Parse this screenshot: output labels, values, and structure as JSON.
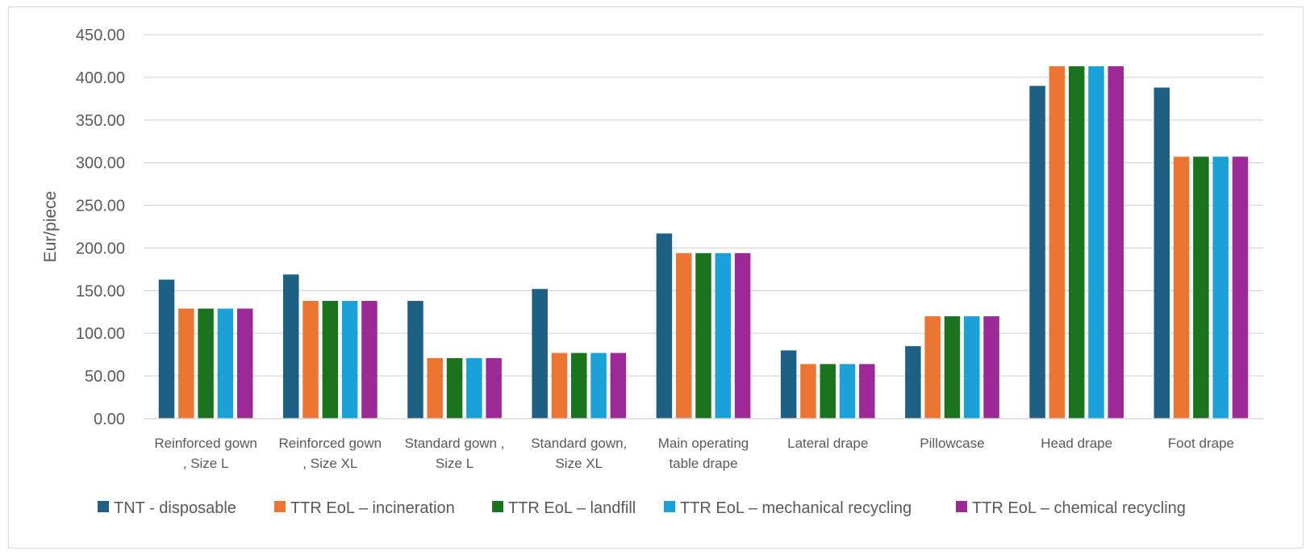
{
  "chart_data": {
    "type": "bar",
    "title": "",
    "xlabel": "",
    "ylabel": "Eur/piece",
    "ylim": [
      0,
      450
    ],
    "yticks": [
      "0.00",
      "50.00",
      "100.00",
      "150.00",
      "200.00",
      "250.00",
      "300.00",
      "350.00",
      "400.00",
      "450.00"
    ],
    "grid": true,
    "legend_position": "bottom",
    "categories": [
      [
        "Reinforced gown",
        ", Size L"
      ],
      [
        "Reinforced gown",
        ", Size XL"
      ],
      [
        "Standard gown ,",
        "Size L"
      ],
      [
        "Standard gown,",
        "Size XL"
      ],
      [
        "Main operating",
        "table drape"
      ],
      [
        "Lateral drape"
      ],
      [
        "Pillowcase"
      ],
      [
        "Head drape"
      ],
      [
        "Foot drape"
      ]
    ],
    "series": [
      {
        "name": "TNT - disposable",
        "color": "#1f5f85",
        "values": [
          163,
          169,
          138,
          152,
          217,
          80,
          85,
          390,
          388
        ]
      },
      {
        "name": "TTR EoL – incineration",
        "color": "#ec7533",
        "values": [
          129,
          138,
          71,
          77,
          194,
          64,
          120,
          413,
          307
        ]
      },
      {
        "name": "TTR EoL – landfill",
        "color": "#19731f",
        "values": [
          129,
          138,
          71,
          77,
          194,
          64,
          120,
          413,
          307
        ]
      },
      {
        "name": "TTR EoL – mechanical recycling",
        "color": "#1aa2d8",
        "values": [
          129,
          138,
          71,
          77,
          194,
          64,
          120,
          413,
          307
        ]
      },
      {
        "name": "TTR EoL – chemical recycling",
        "color": "#9b2a96",
        "values": [
          129,
          138,
          71,
          77,
          194,
          64,
          120,
          413,
          307
        ]
      }
    ]
  }
}
